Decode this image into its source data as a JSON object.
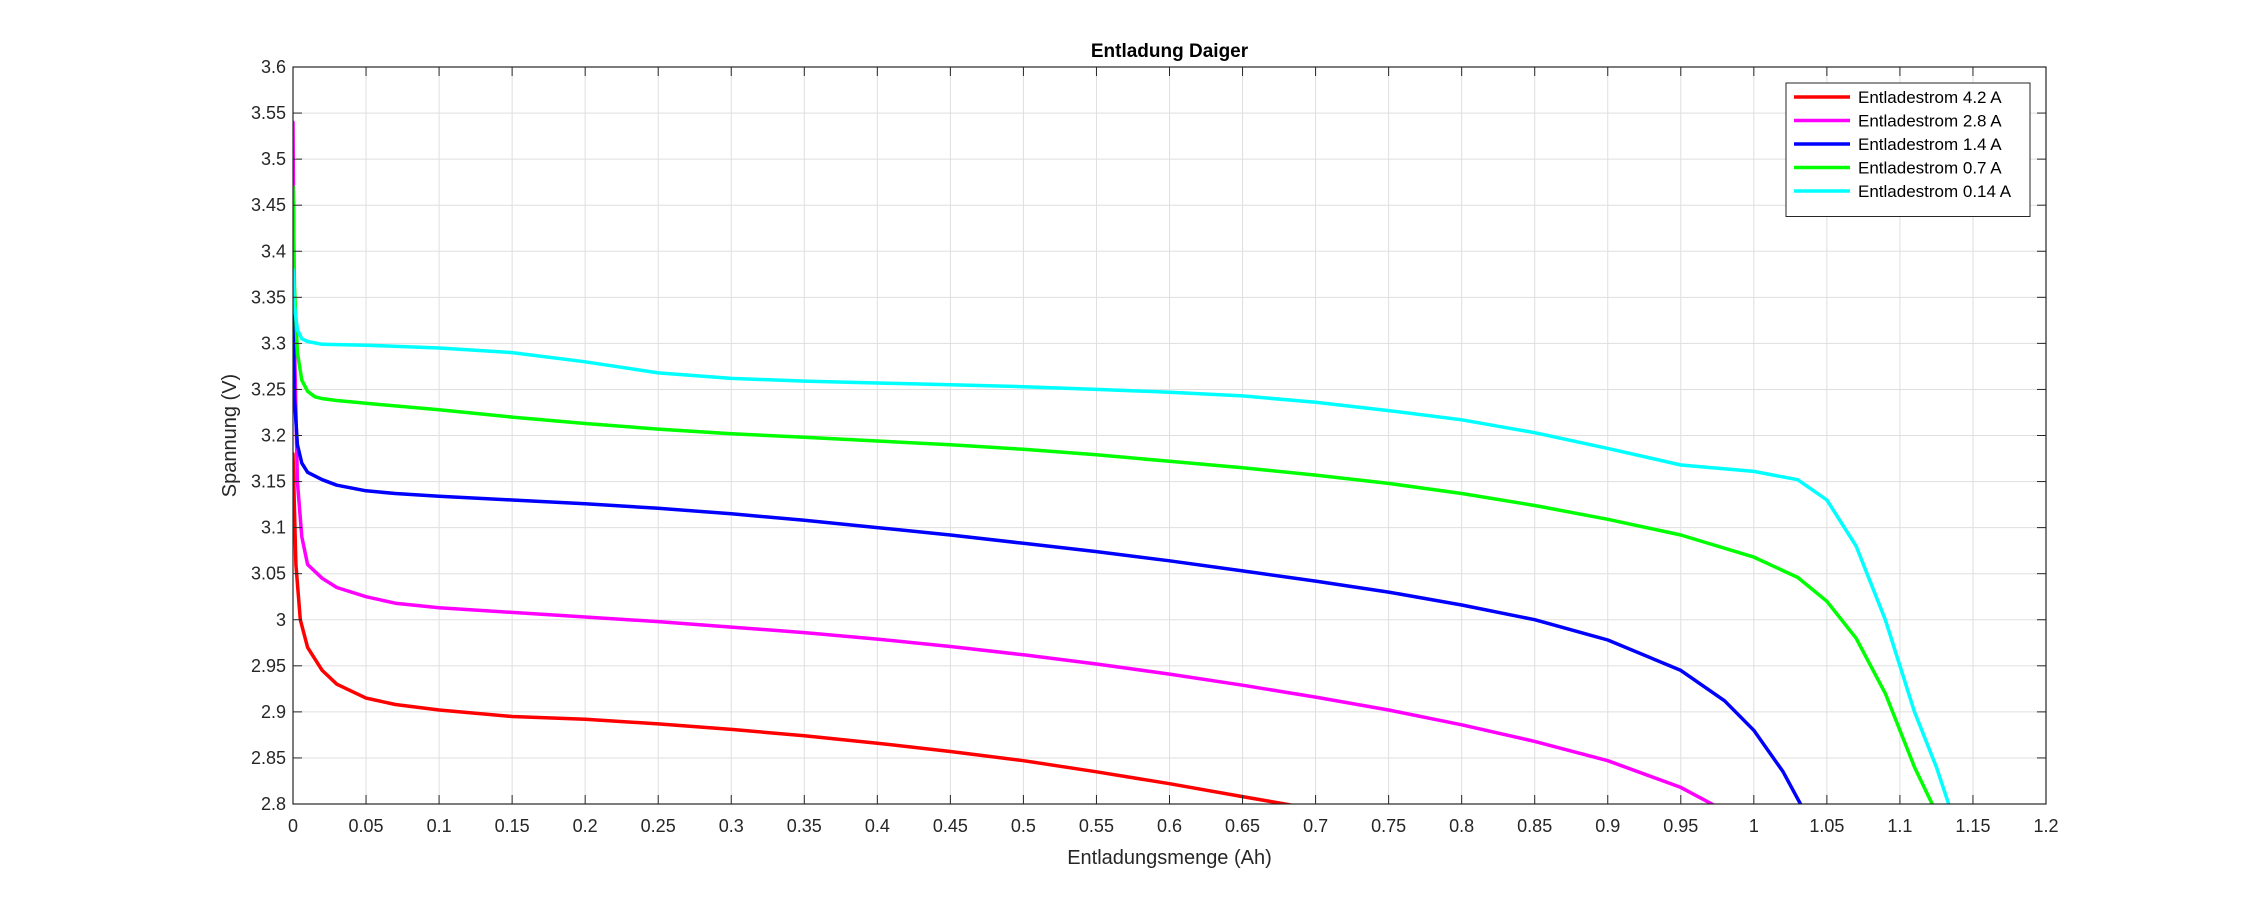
{
  "chart_data": {
    "type": "line",
    "title": "Entladung Daiger",
    "xlabel": "Entladungsmenge (Ah)",
    "ylabel": "Spannung (V)",
    "xlim": [
      0,
      1.2
    ],
    "ylim": [
      2.8,
      3.6
    ],
    "xticks": [
      "0",
      "0.05",
      "0.1",
      "0.15",
      "0.2",
      "0.25",
      "0.3",
      "0.35",
      "0.4",
      "0.45",
      "0.5",
      "0.55",
      "0.6",
      "0.65",
      "0.7",
      "0.75",
      "0.8",
      "0.85",
      "0.9",
      "0.95",
      "1",
      "1.05",
      "1.1",
      "1.15",
      "1.2"
    ],
    "yticks": [
      "2.8",
      "2.85",
      "2.9",
      "2.95",
      "3",
      "3.05",
      "3.1",
      "3.15",
      "3.2",
      "3.25",
      "3.3",
      "3.35",
      "3.4",
      "3.45",
      "3.5",
      "3.55",
      "3.6"
    ],
    "grid": true,
    "legend_position": "top-right",
    "series": [
      {
        "name": "Entladestrom 4.2 A",
        "color": "#ff0000",
        "x": [
          0,
          0.002,
          0.005,
          0.01,
          0.02,
          0.03,
          0.05,
          0.07,
          0.1,
          0.15,
          0.2,
          0.25,
          0.3,
          0.35,
          0.4,
          0.45,
          0.5,
          0.55,
          0.6,
          0.65,
          0.69
        ],
        "y": [
          3.18,
          3.06,
          3.0,
          2.97,
          2.945,
          2.93,
          2.915,
          2.908,
          2.902,
          2.895,
          2.892,
          2.887,
          2.881,
          2.874,
          2.866,
          2.857,
          2.847,
          2.835,
          2.822,
          2.808,
          2.797
        ]
      },
      {
        "name": "Entladestrom 2.8 A",
        "color": "#ff00ff",
        "x": [
          0,
          0.001,
          0.003,
          0.006,
          0.01,
          0.02,
          0.03,
          0.05,
          0.07,
          0.1,
          0.15,
          0.2,
          0.25,
          0.3,
          0.35,
          0.4,
          0.45,
          0.5,
          0.55,
          0.6,
          0.65,
          0.7,
          0.75,
          0.8,
          0.85,
          0.9,
          0.95,
          0.976
        ],
        "y": [
          3.54,
          3.3,
          3.15,
          3.09,
          3.06,
          3.045,
          3.035,
          3.025,
          3.018,
          3.013,
          3.008,
          3.003,
          2.998,
          2.992,
          2.986,
          2.979,
          2.971,
          2.962,
          2.952,
          2.941,
          2.929,
          2.916,
          2.902,
          2.886,
          2.868,
          2.847,
          2.818,
          2.796
        ]
      },
      {
        "name": "Entladestrom 1.4 A",
        "color": "#0000ff",
        "x": [
          0,
          0.001,
          0.003,
          0.006,
          0.01,
          0.02,
          0.03,
          0.05,
          0.07,
          0.1,
          0.15,
          0.2,
          0.25,
          0.3,
          0.35,
          0.4,
          0.45,
          0.5,
          0.55,
          0.6,
          0.65,
          0.7,
          0.75,
          0.8,
          0.85,
          0.9,
          0.95,
          0.98,
          1.0,
          1.02,
          1.033
        ],
        "y": [
          3.33,
          3.24,
          3.19,
          3.17,
          3.16,
          3.152,
          3.146,
          3.14,
          3.137,
          3.134,
          3.13,
          3.126,
          3.121,
          3.115,
          3.108,
          3.1,
          3.092,
          3.083,
          3.074,
          3.064,
          3.053,
          3.042,
          3.03,
          3.016,
          3.0,
          2.978,
          2.945,
          2.912,
          2.88,
          2.835,
          2.797
        ]
      },
      {
        "name": "Entladestrom 0.7 A",
        "color": "#00ff00",
        "x": [
          0,
          0.001,
          0.003,
          0.006,
          0.01,
          0.015,
          0.02,
          0.03,
          0.05,
          0.1,
          0.15,
          0.2,
          0.25,
          0.3,
          0.35,
          0.4,
          0.45,
          0.5,
          0.55,
          0.6,
          0.65,
          0.7,
          0.75,
          0.8,
          0.85,
          0.9,
          0.95,
          1.0,
          1.03,
          1.05,
          1.07,
          1.09,
          1.11,
          1.123
        ],
        "y": [
          3.47,
          3.36,
          3.29,
          3.26,
          3.248,
          3.242,
          3.24,
          3.238,
          3.235,
          3.228,
          3.22,
          3.213,
          3.207,
          3.202,
          3.198,
          3.194,
          3.19,
          3.185,
          3.179,
          3.172,
          3.165,
          3.157,
          3.148,
          3.137,
          3.124,
          3.109,
          3.092,
          3.068,
          3.046,
          3.02,
          2.98,
          2.92,
          2.84,
          2.797
        ]
      },
      {
        "name": "Entladestrom 0.14 A",
        "color": "#00ffff",
        "x": [
          0,
          0.001,
          0.003,
          0.006,
          0.01,
          0.02,
          0.05,
          0.1,
          0.15,
          0.2,
          0.25,
          0.3,
          0.35,
          0.4,
          0.45,
          0.5,
          0.55,
          0.6,
          0.65,
          0.7,
          0.75,
          0.8,
          0.85,
          0.9,
          0.95,
          1.0,
          1.03,
          1.05,
          1.07,
          1.09,
          1.11,
          1.125,
          1.134
        ],
        "y": [
          3.38,
          3.34,
          3.315,
          3.305,
          3.302,
          3.299,
          3.298,
          3.295,
          3.29,
          3.28,
          3.268,
          3.262,
          3.259,
          3.257,
          3.255,
          3.253,
          3.25,
          3.247,
          3.243,
          3.236,
          3.227,
          3.217,
          3.203,
          3.186,
          3.168,
          3.161,
          3.152,
          3.13,
          3.08,
          3.0,
          2.9,
          2.84,
          2.797
        ]
      }
    ]
  }
}
